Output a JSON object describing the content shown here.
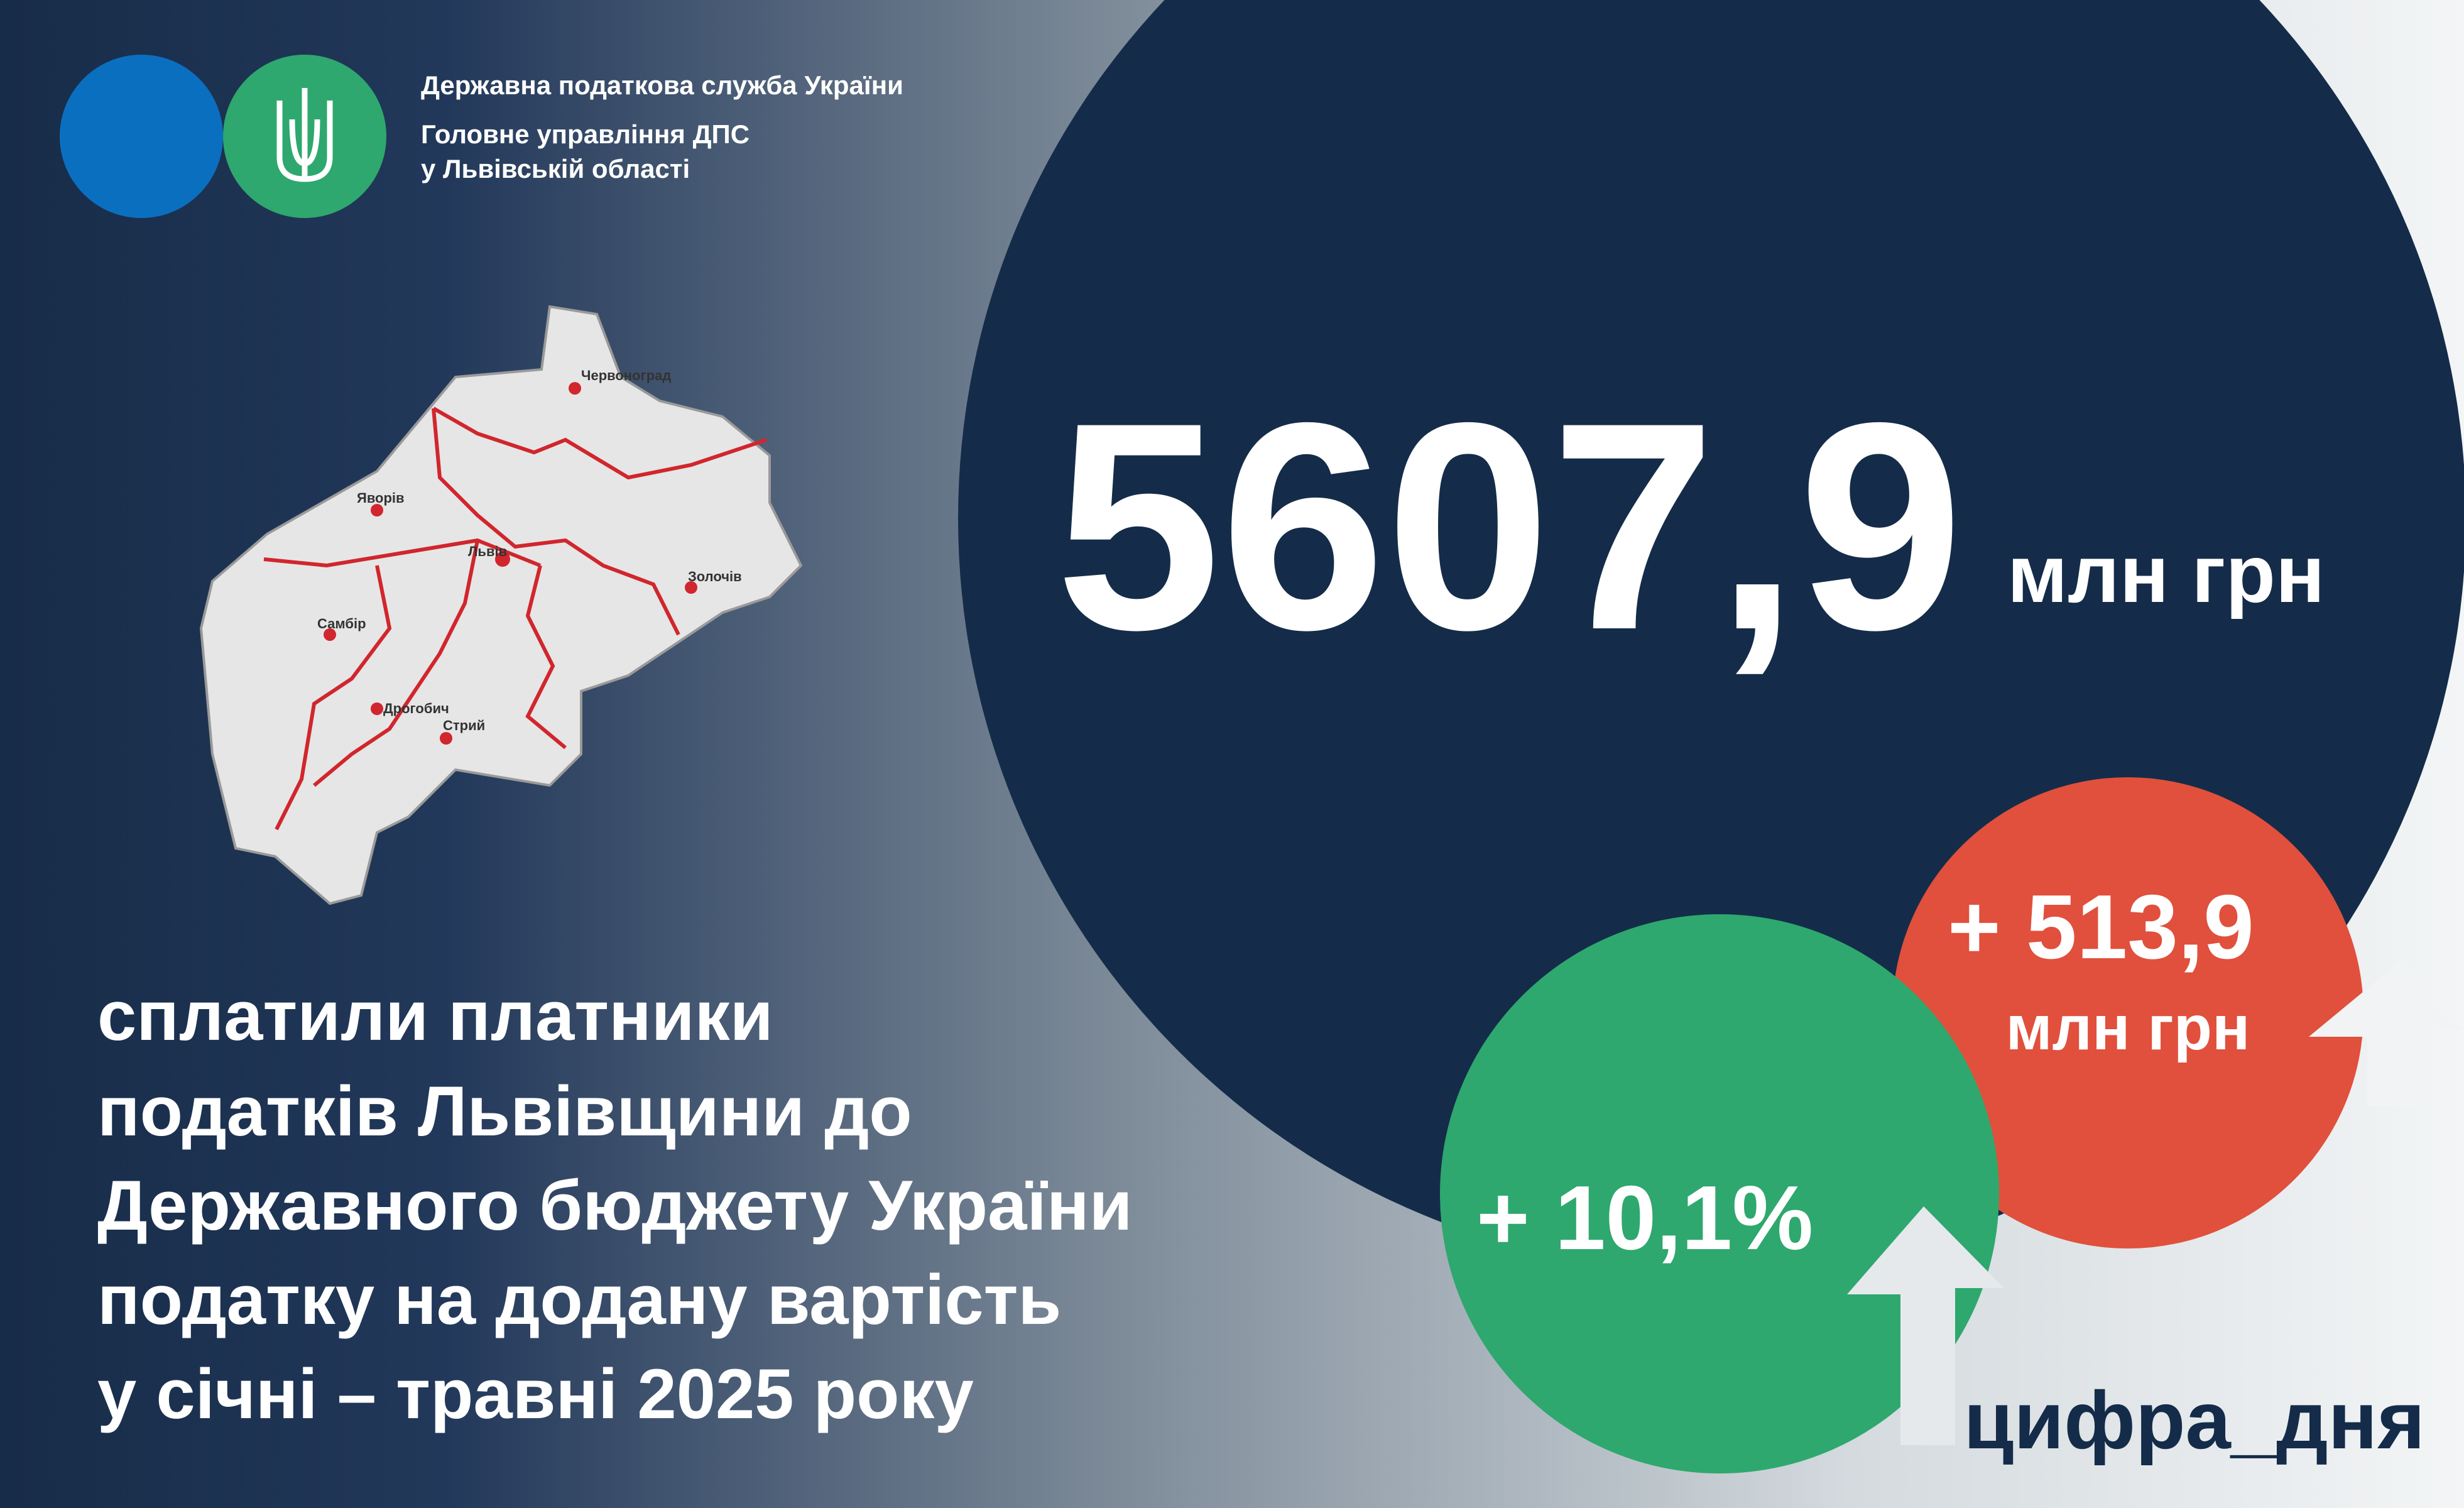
{
  "header": {
    "lines": [
      "Державна податкова служба України",
      "Головне управління ДПС",
      "у Львівській області"
    ]
  },
  "map": {
    "cities": [
      "Червоноград",
      "Яворів",
      "Львів",
      "Золочів",
      "Самбір",
      "Дрогобич",
      "Стрий"
    ]
  },
  "main": {
    "amount": "5607,9",
    "unit": "млн грн"
  },
  "description": [
    "сплатили платники",
    "податків Львівщини до",
    "Державного бюджету України",
    "податку на додану вартість",
    "у січні – травні 2025 року"
  ],
  "badges": {
    "increase_abs": "+ 513,9",
    "increase_abs_unit": "млн грн",
    "increase_pct": "+ 10,1%"
  },
  "hashtag": "цифра_дня"
}
